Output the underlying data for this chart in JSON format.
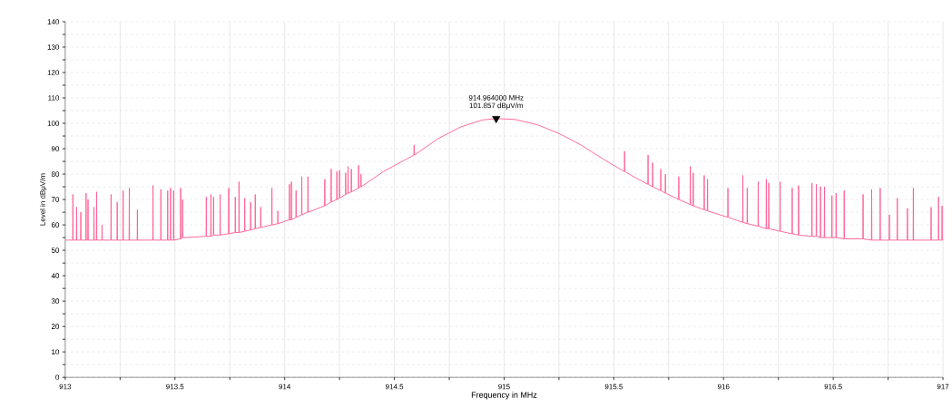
{
  "chart_data": {
    "type": "line",
    "xlabel": "Frequency in MHz",
    "ylabel": "Level in dBμV/m",
    "grid": true,
    "xlim": [
      913,
      917
    ],
    "ylim": [
      0,
      140
    ],
    "xticks": [
      913,
      {
        "value": 913.25,
        "label": null
      },
      913.5,
      {
        "value": 913.75,
        "label": null
      },
      914,
      {
        "value": 914.25,
        "label": null
      },
      914.5,
      {
        "value": 914.75,
        "label": null
      },
      915,
      {
        "value": 915.25,
        "label": null
      },
      915.5,
      {
        "value": 915.75,
        "label": null
      },
      916,
      {
        "value": 916.25,
        "label": null
      },
      916.5,
      {
        "value": 916.75,
        "label": null
      },
      917
    ],
    "yticks": [
      0,
      {
        "value": 5,
        "label": null
      },
      10,
      {
        "value": 15,
        "label": null
      },
      20,
      {
        "value": 25,
        "label": null
      },
      30,
      {
        "value": 35,
        "label": null
      },
      40,
      {
        "value": 45,
        "label": null
      },
      50,
      {
        "value": 55,
        "label": null
      },
      60,
      {
        "value": 65,
        "label": null
      },
      70,
      {
        "value": 75,
        "label": null
      },
      80,
      {
        "value": 85,
        "label": null
      },
      90,
      {
        "value": 95,
        "label": null
      },
      100,
      {
        "value": 105,
        "label": null
      },
      110,
      {
        "value": 115,
        "label": null
      },
      120,
      {
        "value": 125,
        "label": null
      },
      130,
      {
        "value": 135,
        "label": null
      },
      140
    ],
    "annotations": [
      {
        "text": "914.964000 MHz",
        "x": 914.964,
        "y": 101.857
      },
      {
        "text": "101.857 dBμV/m",
        "x": 914.964,
        "y": 101.857
      }
    ],
    "series": [
      {
        "color": "#ff5c93",
        "x": [
          913.002,
          913.034,
          913.035,
          913.036,
          913.051,
          913.052,
          913.053,
          913.07,
          913.071,
          913.072,
          913.094,
          913.095,
          913.096,
          913.103,
          913.104,
          913.105,
          913.13,
          913.131,
          913.132,
          913.142,
          913.143,
          913.144,
          913.167,
          913.168,
          913.169,
          913.208,
          913.209,
          913.21,
          913.236,
          913.237,
          913.238,
          913.263,
          913.264,
          913.265,
          913.291,
          913.292,
          913.293,
          913.328,
          913.329,
          913.33,
          913.399,
          913.4,
          913.401,
          913.435,
          913.436,
          913.437,
          913.466,
          913.467,
          913.468,
          913.479,
          913.48,
          913.481,
          913.493,
          913.494,
          913.495,
          913.525,
          913.526,
          913.527,
          913.534,
          913.535,
          913.536,
          913.642,
          913.643,
          913.644,
          913.663,
          913.664,
          913.665,
          913.675,
          913.676,
          913.677,
          913.705,
          913.706,
          913.707,
          913.744,
          913.745,
          913.746,
          913.774,
          913.775,
          913.776,
          913.791,
          913.792,
          913.793,
          913.817,
          913.818,
          913.819,
          913.844,
          913.845,
          913.846,
          913.865,
          913.866,
          913.867,
          913.89,
          913.891,
          913.892,
          913.941,
          913.942,
          913.943,
          913.968,
          913.969,
          913.97,
          914.021,
          914.022,
          914.023,
          914.03,
          914.031,
          914.032,
          914.051,
          914.052,
          914.053,
          914.077,
          914.078,
          914.079,
          914.105,
          914.106,
          914.107,
          914.182,
          914.183,
          914.184,
          914.211,
          914.212,
          914.213,
          914.237,
          914.238,
          914.239,
          914.249,
          914.25,
          914.251,
          914.277,
          914.278,
          914.279,
          914.288,
          914.289,
          914.29,
          914.303,
          914.304,
          914.305,
          914.336,
          914.337,
          914.338,
          914.347,
          914.348,
          914.349,
          914.45,
          914.589,
          914.59,
          914.591,
          914.7,
          914.8,
          914.9,
          914.964,
          915.05,
          915.15,
          915.25,
          915.35,
          915.45,
          915.548,
          915.549,
          915.55,
          915.6,
          915.655,
          915.656,
          915.657,
          915.676,
          915.677,
          915.678,
          915.713,
          915.714,
          915.715,
          915.734,
          915.735,
          915.736,
          915.795,
          915.796,
          915.797,
          915.848,
          915.849,
          915.85,
          915.861,
          915.862,
          915.863,
          915.911,
          915.912,
          915.913,
          915.926,
          915.927,
          915.928,
          916.019,
          916.02,
          916.021,
          916.087,
          916.088,
          916.089,
          916.107,
          916.108,
          916.109,
          916.157,
          916.158,
          916.159,
          916.194,
          916.195,
          916.196,
          916.205,
          916.206,
          916.207,
          916.257,
          916.258,
          916.259,
          916.312,
          916.313,
          916.314,
          916.341,
          916.342,
          916.343,
          916.402,
          916.403,
          916.404,
          916.422,
          916.423,
          916.424,
          916.441,
          916.442,
          916.443,
          916.459,
          916.46,
          916.461,
          916.493,
          916.494,
          916.495,
          916.512,
          916.513,
          916.514,
          916.549,
          916.55,
          916.551,
          916.635,
          916.636,
          916.637,
          916.674,
          916.675,
          916.676,
          916.713,
          916.714,
          916.715,
          916.755,
          916.756,
          916.757,
          916.791,
          916.792,
          916.793,
          916.837,
          916.838,
          916.839,
          916.864,
          916.865,
          916.866,
          916.945,
          916.946,
          916.947,
          916.979,
          916.98,
          916.981,
          916.995,
          916.996,
          916.997,
          917.0
        ],
        "values": [
          54,
          54,
          72,
          54,
          54,
          67,
          54,
          54,
          65,
          54,
          54,
          72.5,
          54,
          54,
          70,
          54,
          54,
          67,
          54,
          54,
          73,
          54,
          54,
          60,
          54,
          54,
          72,
          54,
          54,
          69,
          54,
          54,
          73.5,
          54,
          54,
          74.5,
          54,
          54,
          66,
          54,
          54,
          75.5,
          54,
          54,
          74,
          54,
          54,
          73.5,
          54,
          54,
          74.5,
          54,
          54,
          73.5,
          54,
          54.5,
          74.5,
          54.5,
          55,
          70,
          55,
          55.5,
          71,
          55.5,
          55.5,
          72,
          55.5,
          56,
          71,
          56,
          56,
          72,
          56,
          56.5,
          74.5,
          56.5,
          57,
          71,
          57,
          57,
          77,
          57,
          57.5,
          70.5,
          57.5,
          58,
          69,
          58,
          58.5,
          72,
          58.5,
          59,
          67,
          59,
          60,
          74.5,
          60,
          60.5,
          65.5,
          60.5,
          62,
          76,
          62,
          62,
          77,
          62,
          63,
          73.5,
          63,
          64,
          79,
          64,
          65,
          79,
          65,
          67.5,
          78,
          67.5,
          69,
          82,
          69,
          70,
          81,
          70,
          70.5,
          81.5,
          70.5,
          72,
          80.5,
          72,
          72.5,
          83,
          72.5,
          73,
          82,
          73,
          74.5,
          83.5,
          74.5,
          75,
          80,
          75,
          81,
          87.5,
          91.5,
          87.5,
          94,
          98.5,
          101.3,
          101.857,
          101.5,
          99.5,
          96,
          91.5,
          86,
          81,
          89,
          81,
          78.5,
          76,
          87.5,
          76,
          75,
          84.5,
          75,
          73.5,
          82,
          73.5,
          72.5,
          80,
          72.5,
          70,
          79,
          70,
          68,
          83,
          68,
          67.5,
          80.5,
          67.5,
          66,
          79.5,
          66,
          65.5,
          78,
          65.5,
          63,
          74.5,
          63,
          61,
          79.5,
          61,
          60.5,
          74.5,
          60.5,
          59.5,
          77,
          59.5,
          58.5,
          78,
          58.5,
          58.5,
          76.5,
          58.5,
          57.5,
          77,
          57.5,
          56.5,
          74.5,
          56.5,
          56,
          75.5,
          56,
          55.5,
          76.5,
          55.5,
          55.5,
          76,
          55.5,
          55,
          75,
          55,
          55,
          75,
          55,
          55,
          71.5,
          55,
          55,
          72.5,
          55,
          54.5,
          73.5,
          54.5,
          54.5,
          72,
          54.5,
          54,
          74,
          54,
          54,
          74.5,
          54,
          54,
          64,
          54,
          54,
          70.5,
          54,
          54,
          66.5,
          54,
          54,
          74.5,
          54,
          54,
          67,
          54,
          54,
          71,
          54,
          54,
          67.5,
          54,
          54
        ]
      },
      {
        "type": "scatter",
        "marker": "triangle",
        "color": "#000000",
        "x": [
          914.964
        ],
        "values": [
          101.857
        ]
      }
    ]
  }
}
